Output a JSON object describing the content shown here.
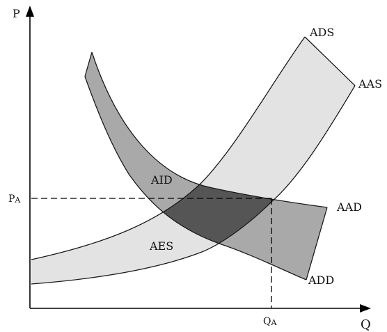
{
  "axes": {
    "y_label": "P",
    "x_label": "Q"
  },
  "equilibrium": {
    "price_label_main": "P",
    "price_label_sub": "A",
    "quantity_label_main": "Q",
    "quantity_label_sub": "A"
  },
  "curves": {
    "ads": "ADS",
    "aas": "AAS",
    "aad": "AAD",
    "add": "ADD"
  },
  "regions": {
    "aid": "AID",
    "aes": "AES"
  },
  "colors": {
    "supply_band": "#e3e3e3",
    "demand_band": "#a9a9a9",
    "overlap": "#555555",
    "line": "#1a1a1a",
    "axis": "#000000"
  }
}
